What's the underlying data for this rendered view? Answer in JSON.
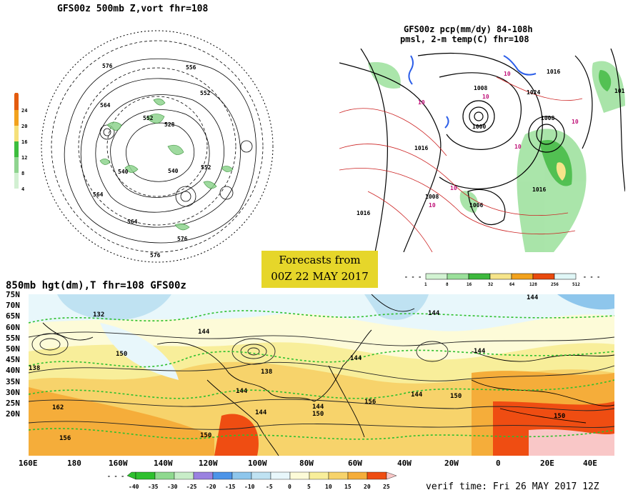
{
  "panel_500mb": {
    "title": "GFS00z   500mb Z,vort    fhr=108",
    "colorbar_ticks": [
      "24",
      "20",
      "16",
      "12",
      "8",
      "4"
    ],
    "colorbar_colors": [
      "#e35b0e",
      "#f2a21d",
      "#f5e07a",
      "#3dbd3d",
      "#8fd48f",
      "#d2f0d2"
    ],
    "contour_labels": [
      "576",
      "556",
      "564",
      "552",
      "528",
      "552",
      "540",
      "540",
      "564",
      "552",
      "564",
      "576",
      "576",
      "552",
      "556",
      "552",
      "564",
      "540",
      "568"
    ]
  },
  "panel_pcp": {
    "title_line1": "GFS00z pcp(mm/dy) 84-108h",
    "title_line2": "pmsl, 2-m temp(C)  fhr=108",
    "pressure_labels": [
      "1016",
      "1008",
      "1024",
      "1000",
      "1008",
      "1016",
      "1008",
      "1006",
      "1008",
      "1016",
      "1016",
      "1016"
    ],
    "temp_labels": [
      "10",
      "10",
      "10",
      "10",
      "10",
      "10",
      "10"
    ],
    "colorbar_ticks": [
      "1",
      "8",
      "16",
      "32",
      "64",
      "128",
      "256",
      "512"
    ],
    "colorbar_colors": [
      "#d2f3d2",
      "#9be09b",
      "#3db83d",
      "#f6e48a",
      "#f2a21d",
      "#e94a0e",
      "#fbe3e3",
      "#e0f7f7"
    ]
  },
  "forecast_banner": {
    "line1": "Forecasts from",
    "line2": "00Z 22 MAY 2017"
  },
  "panel_850mb": {
    "title": "850mb hgt(dm),T   fhr=108  GFS00z",
    "lat_labels": [
      "75N",
      "70N",
      "65N",
      "60N",
      "55N",
      "50N",
      "45N",
      "40N",
      "35N",
      "30N",
      "25N",
      "20N"
    ],
    "lon_labels": [
      "160E",
      "180",
      "160W",
      "140W",
      "120W",
      "100W",
      "80W",
      "60W",
      "40W",
      "20W",
      "0",
      "20E",
      "40E"
    ],
    "height_labels": [
      "132",
      "144",
      "144",
      "144",
      "144",
      "150",
      "138",
      "138",
      "144",
      "144",
      "144",
      "150",
      "162",
      "156",
      "150",
      "150",
      "156",
      "144",
      "144",
      "150"
    ],
    "colorbar_ticks": [
      "-40",
      "-35",
      "-30",
      "-25",
      "-20",
      "-15",
      "-10",
      "-5",
      "0",
      "5",
      "10",
      "15",
      "20",
      "25"
    ],
    "colorbar_colors": [
      "#2ec02e",
      "#8fd98f",
      "#c8edc8",
      "#9a82e0",
      "#4d94e8",
      "#8ec6ec",
      "#bfe2f2",
      "#e8f7fb",
      "#fdfbd8",
      "#f8ee9a",
      "#f7d36b",
      "#f5ad3a",
      "#ef4d12",
      "#f9c7c7"
    ],
    "verif": "verif time: Fri 26 MAY 2017 12Z"
  }
}
